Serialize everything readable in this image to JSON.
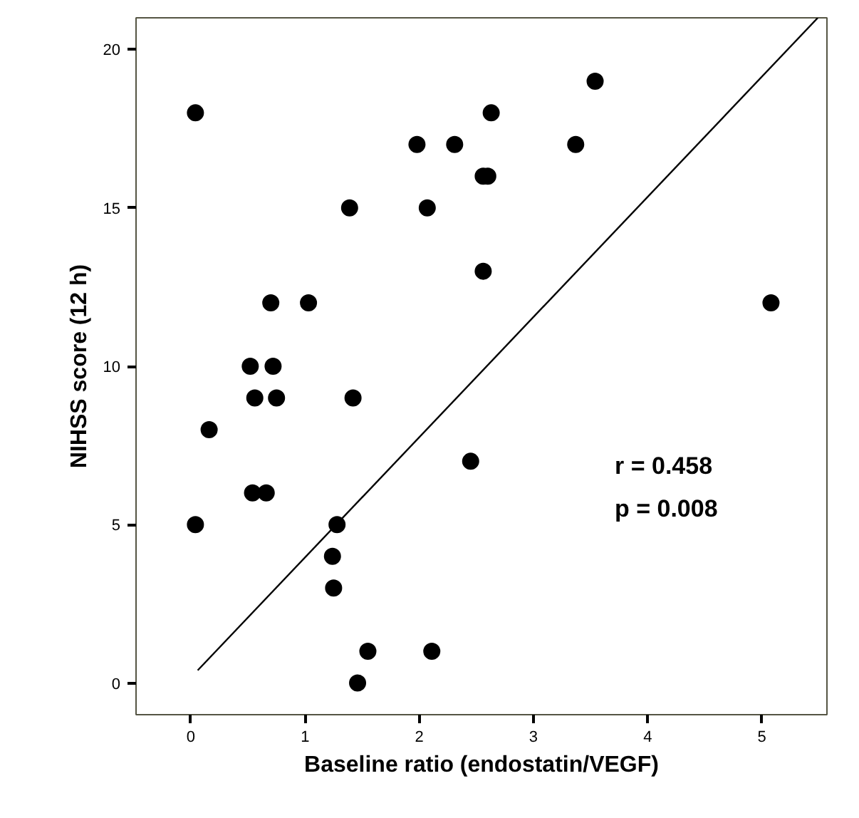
{
  "chart_data": {
    "type": "scatter",
    "xlabel": "Baseline ratio (endostatin/VEGF)",
    "ylabel": "NIHSS score (12 h)",
    "xlim": [
      -0.48,
      5.57
    ],
    "ylim": [
      -1,
      21
    ],
    "xticks": [
      0,
      1,
      2,
      3,
      4,
      5
    ],
    "yticks": [
      0,
      5,
      10,
      15,
      20
    ],
    "grid": false,
    "marker": "circle",
    "series": [
      {
        "color": "#000000",
        "x": [
          0.04,
          1.98,
          2.31,
          2.63,
          2.56,
          2.6,
          1.39,
          2.07,
          2.56,
          0.7,
          1.03,
          0.52,
          0.72,
          0.56,
          0.75,
          1.42,
          0.16,
          2.45,
          0.54,
          0.66,
          0.04,
          1.28,
          1.24,
          1.25,
          1.55,
          2.11,
          1.46,
          3.54,
          3.37,
          5.08
        ],
        "values": [
          18,
          17,
          17,
          18,
          16,
          16,
          15,
          15,
          13,
          12,
          12,
          10,
          10,
          9,
          9,
          9,
          8,
          7,
          6,
          6,
          5,
          5,
          4,
          3,
          1,
          1,
          0,
          19,
          17,
          12
        ]
      },
      {
        "type": "line",
        "color": "#000000",
        "marker": "none",
        "x": [
          0.06,
          5.49
        ],
        "values": [
          0.4,
          21.0
        ]
      }
    ],
    "annotations": [
      "r = 0.458",
      "p = 0.008"
    ]
  }
}
